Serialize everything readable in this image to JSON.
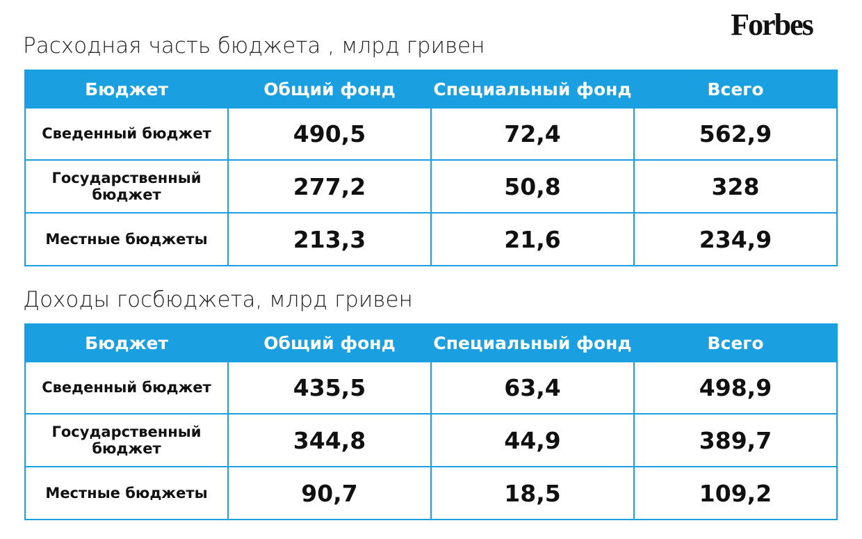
{
  "logo": "Forbes",
  "tables": [
    {
      "title": "Расходная часть бюджета , млрд гривен",
      "header": [
        "Бюджет",
        "Общий фонд",
        "Специальный фонд",
        "Всего"
      ],
      "rows": [
        [
          "Сведенный бюджет",
          "490,5",
          "72,4",
          "562,9"
        ],
        [
          "Государственный\nбюджет",
          "277,2",
          "50,8",
          "328"
        ],
        [
          "Местные бюджеты",
          "213,3",
          "21,6",
          "234,9"
        ]
      ]
    },
    {
      "title": "Доходы госбюджета, млрд гривен",
      "header": [
        "Бюджет",
        "Общий фонд",
        "Специальный фонд",
        "Всего"
      ],
      "rows": [
        [
          "Сведенный бюджет",
          "435,5",
          "63,4",
          "498,9"
        ],
        [
          "Государственный\nбюджет",
          "344,8",
          "44,9",
          "389,7"
        ],
        [
          "Местные бюджеты",
          "90,7",
          "18,5",
          "109,2"
        ]
      ]
    }
  ]
}
